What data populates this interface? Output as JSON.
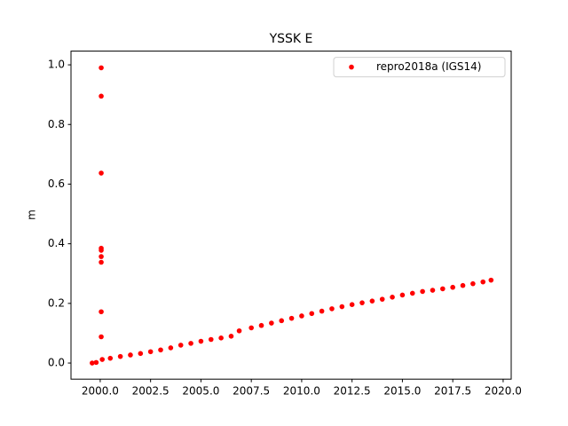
{
  "chart_data": {
    "type": "scatter",
    "title": "YSSK E",
    "ylabel": "m",
    "x": [
      1999.6,
      1999.8,
      2000.1,
      2000.5,
      2001.0,
      2001.5,
      2002.0,
      2002.5,
      2003.0,
      2003.5,
      2004.0,
      2004.5,
      2005.0,
      2005.5,
      2006.0,
      2006.5,
      2006.9,
      2007.5,
      2008.0,
      2008.5,
      2009.0,
      2009.5,
      2010.0,
      2010.5,
      2011.0,
      2011.5,
      2012.0,
      2012.5,
      2013.0,
      2013.5,
      2014.0,
      2014.5,
      2015.0,
      2015.5,
      2016.0,
      2016.5,
      2017.0,
      2017.5,
      2018.0,
      2018.5,
      2019.0,
      2019.4,
      2000.05,
      2000.05,
      2000.05,
      2000.05,
      2000.05,
      2000.05,
      2000.05,
      2000.05,
      2000.05
    ],
    "series": [
      {
        "name": "repro2018a (IGS14)",
        "color": "#ff0000",
        "values": [
          0.0,
          0.002,
          0.012,
          0.016,
          0.022,
          0.027,
          0.032,
          0.038,
          0.044,
          0.051,
          0.06,
          0.066,
          0.073,
          0.079,
          0.084,
          0.09,
          0.108,
          0.118,
          0.126,
          0.134,
          0.142,
          0.15,
          0.158,
          0.166,
          0.174,
          0.182,
          0.189,
          0.196,
          0.202,
          0.208,
          0.214,
          0.221,
          0.228,
          0.234,
          0.24,
          0.244,
          0.249,
          0.254,
          0.26,
          0.266,
          0.272,
          0.278,
          0.99,
          0.895,
          0.637,
          0.385,
          0.378,
          0.357,
          0.338,
          0.172,
          0.088
        ]
      }
    ],
    "xlim": [
      1998.55,
      2020.4
    ],
    "ylim": [
      -0.054,
      1.046
    ],
    "xticks": [
      {
        "value": 2000,
        "label": "2000.0"
      },
      {
        "value": 2002.5,
        "label": "2002.5"
      },
      {
        "value": 2005,
        "label": "2005.0"
      },
      {
        "value": 2007.5,
        "label": "2007.5"
      },
      {
        "value": 2010,
        "label": "2010.0"
      },
      {
        "value": 2012.5,
        "label": "2012.5"
      },
      {
        "value": 2015,
        "label": "2015.0"
      },
      {
        "value": 2017.5,
        "label": "2017.5"
      },
      {
        "value": 2020,
        "label": "2020.0"
      }
    ],
    "yticks": [
      {
        "value": 0,
        "label": "0.0"
      },
      {
        "value": 0.2,
        "label": "0.2"
      },
      {
        "value": 0.4,
        "label": "0.4"
      },
      {
        "value": 0.6,
        "label": "0.6"
      },
      {
        "value": 0.8,
        "label": "0.8"
      },
      {
        "value": 1.0,
        "label": "1.0"
      }
    ],
    "legend": "upper right"
  }
}
